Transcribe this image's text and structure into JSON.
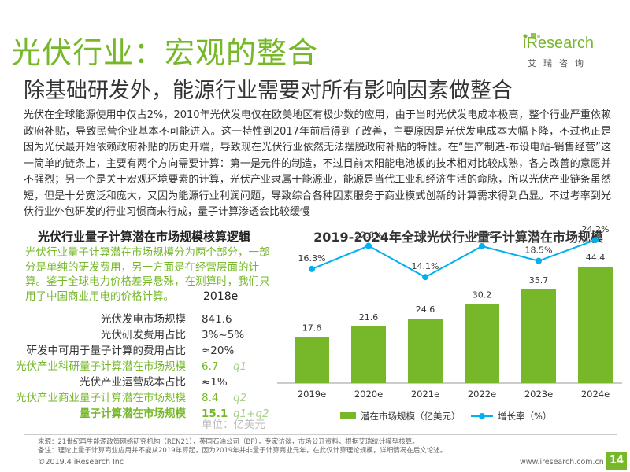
{
  "header": {
    "title": "光伏行业：宏观的整合",
    "subtitle": "除基础研发外，能源行业需要对所有影响因素做整合"
  },
  "brand": {
    "logo_text": "iResearch",
    "logo_cn": "艾瑞咨询",
    "accent_color": "#76b82a"
  },
  "intro": "光伏在全球能源使用中仅占2%，2010年光伏发电仅在欧美地区有极少数的应用，由于当时光伏发电成本极高，整个行业严重依赖政府补贴，导致民营企业基本不可能进入。这一特性到2017年前后得到了改善，主要原因是光伏发电成本大幅下降，不过也正是因为光伏最开始依赖政府补贴的历史开端，导致现在光伏行业依然无法摆脱政府补贴的特性。在“生产制造-布设电站-销售经营”这一简单的链条上，主要有两个方向需要计算：第一是元件的制造，不过目前太阳能电池板的技术相对比较成熟，各方改善的意愿并不强烈；另一个是关于宏观环境要素的计算，光伏产业隶属于能源业，能源是当代工业和经济生活的命脉，所以光伏产业链条虽然短，但是十分宽泛和庞大，又因为能源行业利润问题，导致综合各种因素服务于商业模式创新的计算需求得到凸显。不过考率到光伏行业外包研发的行业习惯商未行成，量子计算渗透会比较缓慢",
  "left_panel": {
    "title": "光伏行业量子计算潜在市场规模核算逻辑",
    "description": "光伏行业量子计算潜在市场规模分为两个部分，一部分是单纯的研发费用，另一方面是在经营层面的计算。鉴于全球电力价格差异悬殊，在测算时，我们只用了中国商业用电的价格计算。",
    "column_header": "2018e",
    "rows": [
      {
        "label": "光伏发电市场规模",
        "value": "841.6",
        "note": ""
      },
      {
        "label": "光伏研发费用占比",
        "value": "3%~5%",
        "note": ""
      },
      {
        "label": "研发中可用于量子计算的费用占比",
        "value": "≈20%",
        "note": ""
      },
      {
        "label": "光伏产业科研量子计算潜在市场规模",
        "value": "6.7",
        "note": "q1"
      },
      {
        "label": "光伏产业运营成本占比",
        "value": "≈1%",
        "note": ""
      },
      {
        "label": "光伏产业商业量子计算潜在市场规模",
        "value": "8.4",
        "note": "q2"
      },
      {
        "label": "量子计算潜在市场规模",
        "value": "15.1",
        "note": "q1+q2"
      }
    ],
    "unit": "单位：亿美元"
  },
  "chart_data": {
    "type": "bar",
    "title": "2019-2024年全球光伏行业量子计算潜在市场规模",
    "categories": [
      "2019e",
      "2020e",
      "2021e",
      "2022e",
      "2023e",
      "2024e"
    ],
    "series": [
      {
        "name": "潜在市场规模（亿美元）",
        "type": "bar",
        "values": [
          17.6,
          21.6,
          24.6,
          30.2,
          35.7,
          44.4
        ],
        "labels": [
          "17.6",
          "21.6",
          "24.6",
          "30.2",
          "35.7",
          "44.4"
        ],
        "color": "#76b82a"
      },
      {
        "name": "增长率（%）",
        "type": "line",
        "values": [
          16.3,
          22.6,
          14.1,
          22.5,
          18.5,
          24.2
        ],
        "labels": [
          "16.3%",
          "22.6%",
          "14.1%",
          "22.5%",
          "18.5%",
          "24.2%"
        ],
        "color": "#00b0f0"
      }
    ],
    "bar_ylim": [
      0,
      60
    ],
    "line_ylim": [
      0,
      30
    ],
    "legend_position": "bottom",
    "grid": false
  },
  "footer": {
    "source": "来源：21世纪再生能源政策网络研究机构（REN21），英国石油公司（BP），专家访谈，市场公开资料，根据艾瑞统计模型核算。",
    "note": "备注：理论上量子计算商业应用并不能从2019年算起，因为2019年并非量子计算商业元年，在此仅计算理论规模，详细情况在后文论述。",
    "copyright": "©2019.4 iResearch Inc",
    "website": "www.iresearch.com.cn",
    "page_number": "14"
  }
}
